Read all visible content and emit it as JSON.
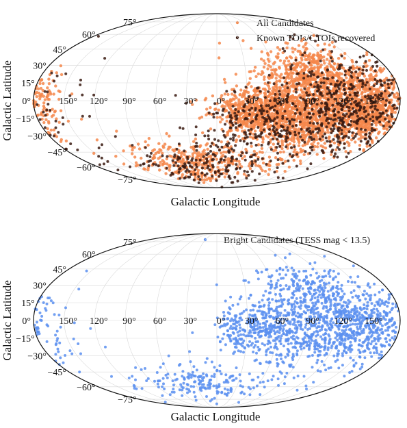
{
  "chart_data": [
    {
      "type": "scatter",
      "projection": "mollweide",
      "title": "",
      "xlabel": "Galactic Longitude",
      "ylabel": "Galactic Latitude",
      "grid": true,
      "legend_position": "top-right",
      "lon_ticks": [
        150,
        120,
        90,
        60,
        30,
        0,
        -30,
        -60,
        -90,
        -120,
        -150
      ],
      "lon_tick_labels": [
        "150°",
        "120°",
        "90°",
        "60°",
        "30°",
        "0°",
        "30°",
        "60°",
        "90°",
        "120°",
        "150°"
      ],
      "lat_ticks": [
        75,
        60,
        45,
        30,
        15,
        0,
        -15,
        -30,
        -45,
        -60,
        -75
      ],
      "lat_tick_labels": [
        "75°",
        "60°",
        "45°",
        "30°",
        "15°",
        "0°",
        "−15°",
        "−30°",
        "−45°",
        "−60°",
        "−75°"
      ],
      "series": [
        {
          "name": "All Candidates",
          "color": "#f4874b",
          "marker_size": 2.2,
          "count": 3400,
          "clusters": [
            {
              "lon": 150,
              "lat": -5,
              "sd_lon": 22,
              "sd_lat": 15,
              "weight": 0.3
            },
            {
              "lon": 90,
              "lat": -10,
              "sd_lon": 28,
              "sd_lat": 18,
              "weight": 0.3
            },
            {
              "lon": 40,
              "lat": -10,
              "sd_lon": 22,
              "sd_lat": 10,
              "weight": 0.18
            },
            {
              "lon": 100,
              "lat": 25,
              "sd_lon": 30,
              "sd_lat": 12,
              "weight": 0.12
            },
            {
              "lon": -25,
              "lat": -55,
              "sd_lon": 45,
              "sd_lat": 10,
              "weight": 0.1
            }
          ]
        },
        {
          "name": "Known TOIs/CTOIs recovered",
          "color": "#3a1a10",
          "marker_size": 2.0,
          "count": 950,
          "clusters": [
            {
              "lon": 130,
              "lat": -5,
              "sd_lon": 35,
              "sd_lat": 22,
              "weight": 0.6
            },
            {
              "lon": 40,
              "lat": -15,
              "sd_lon": 28,
              "sd_lat": 15,
              "weight": 0.2
            },
            {
              "lon": -20,
              "lat": -55,
              "sd_lon": 50,
              "sd_lat": 12,
              "weight": 0.2
            }
          ]
        }
      ]
    },
    {
      "type": "scatter",
      "projection": "mollweide",
      "title": "",
      "xlabel": "Galactic Longitude",
      "ylabel": "Galactic Latitude",
      "grid": true,
      "legend_position": "top-right",
      "lon_ticks": [
        150,
        120,
        90,
        60,
        30,
        0,
        -30,
        -60,
        -90,
        -120,
        -150
      ],
      "lon_tick_labels": [
        "150°",
        "120°",
        "90°",
        "60°",
        "30°",
        "0°",
        "30°",
        "60°",
        "90°",
        "120°",
        "150°"
      ],
      "lat_ticks": [
        75,
        60,
        45,
        30,
        15,
        0,
        -15,
        -30,
        -45,
        -60,
        -75
      ],
      "lat_tick_labels": [
        "75°",
        "60°",
        "45°",
        "30°",
        "15°",
        "0°",
        "−15°",
        "−30°",
        "−45°",
        "−60°",
        "−75°"
      ],
      "series": [
        {
          "name": "Bright Candidates (TESS mag < 13.5)",
          "color": "#5b8ff0",
          "marker_size": 2.0,
          "count": 1700,
          "clusters": [
            {
              "lon": 150,
              "lat": -5,
              "sd_lon": 25,
              "sd_lat": 18,
              "weight": 0.3
            },
            {
              "lon": 90,
              "lat": -5,
              "sd_lon": 30,
              "sd_lat": 20,
              "weight": 0.3
            },
            {
              "lon": 40,
              "lat": -8,
              "sd_lon": 22,
              "sd_lat": 12,
              "weight": 0.18
            },
            {
              "lon": 100,
              "lat": 25,
              "sd_lon": 30,
              "sd_lat": 12,
              "weight": 0.1
            },
            {
              "lon": -25,
              "lat": -55,
              "sd_lon": 45,
              "sd_lat": 10,
              "weight": 0.12
            }
          ]
        }
      ]
    }
  ]
}
